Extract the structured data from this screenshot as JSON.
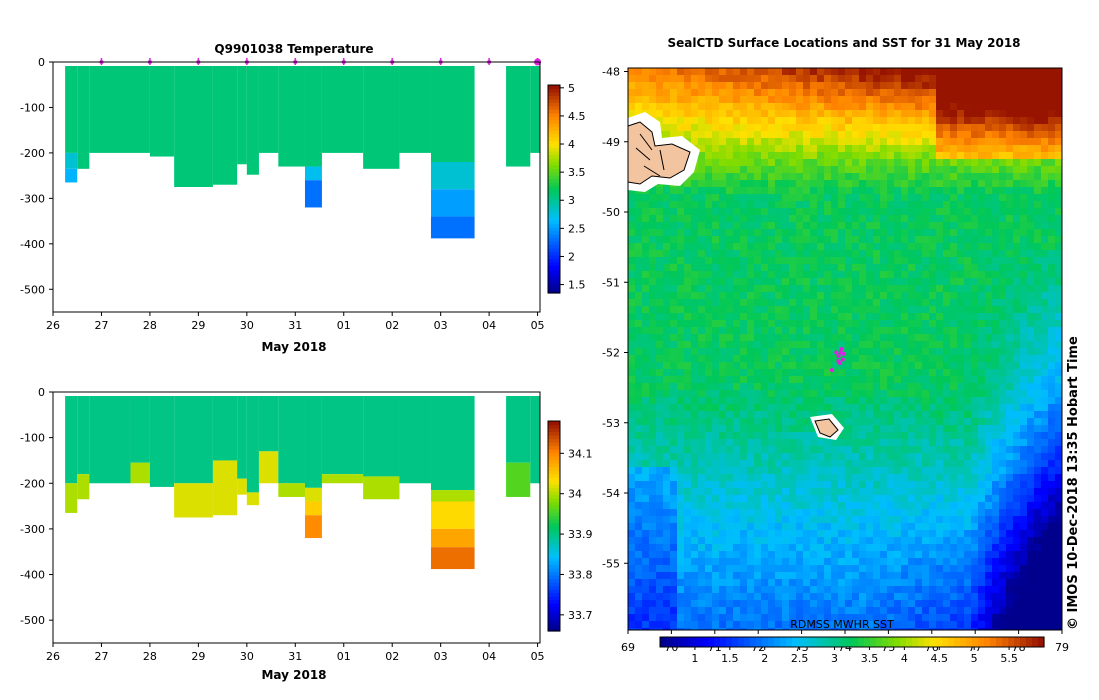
{
  "chart_data": [
    {
      "type": "heatmap",
      "title": "Q9901038  Temperature",
      "xlabel": "May 2018",
      "ylabel": "",
      "x_tick_labels": [
        "26",
        "27",
        "28",
        "29",
        "30",
        "31",
        "01",
        "02",
        "03",
        "04",
        "05"
      ],
      "x_range_days": [
        26.0,
        36.05
      ],
      "y_ticks": [
        0,
        -100,
        -200,
        -300,
        -400,
        -500
      ],
      "ylim": [
        -550,
        0
      ],
      "colorbar_ticks": [
        1.5,
        2,
        2.5,
        3,
        3.5,
        4,
        4.5,
        5
      ],
      "colorbar_range": [
        1.35,
        5.05
      ],
      "profile_markers_day": [
        27,
        28,
        29,
        30,
        31,
        32,
        33,
        34,
        35,
        36
      ],
      "profiles": [
        {
          "start": 26.25,
          "end": 26.5,
          "depth": -265,
          "layers": [
            [
              0,
              -200,
              3.1
            ],
            [
              -200,
              -235,
              2.8
            ],
            [
              -235,
              -265,
              2.6
            ]
          ]
        },
        {
          "start": 26.5,
          "end": 26.75,
          "depth": -235,
          "layers": [
            [
              0,
              -235,
              3.1
            ]
          ]
        },
        {
          "start": 26.75,
          "end": 28.0,
          "depth": -200,
          "layers": [
            [
              0,
              -200,
              3.1
            ]
          ]
        },
        {
          "start": 28.0,
          "end": 28.5,
          "depth": -208,
          "layers": [
            [
              0,
              -208,
              3.1
            ]
          ]
        },
        {
          "start": 28.5,
          "end": 29.3,
          "depth": -275,
          "layers": [
            [
              0,
              -275,
              3.1
            ]
          ]
        },
        {
          "start": 29.3,
          "end": 29.8,
          "depth": -270,
          "layers": [
            [
              0,
              -270,
              3.1
            ]
          ]
        },
        {
          "start": 29.8,
          "end": 30.0,
          "depth": -225,
          "layers": [
            [
              0,
              -225,
              3.1
            ]
          ]
        },
        {
          "start": 30.0,
          "end": 30.25,
          "depth": -248,
          "layers": [
            [
              0,
              -248,
              3.1
            ]
          ]
        },
        {
          "start": 30.25,
          "end": 30.65,
          "depth": -200,
          "layers": [
            [
              0,
              -200,
              3.1
            ]
          ]
        },
        {
          "start": 30.65,
          "end": 31.2,
          "depth": -230,
          "layers": [
            [
              0,
              -230,
              3.1
            ]
          ]
        },
        {
          "start": 31.2,
          "end": 31.55,
          "depth": -320,
          "layers": [
            [
              0,
              -230,
              3.1
            ],
            [
              -230,
              -260,
              2.7
            ],
            [
              -260,
              -320,
              2.3
            ]
          ]
        },
        {
          "start": 31.55,
          "end": 32.4,
          "depth": -200,
          "layers": [
            [
              0,
              -200,
              3.1
            ]
          ]
        },
        {
          "start": 32.4,
          "end": 33.15,
          "depth": -235,
          "layers": [
            [
              0,
              -235,
              3.1
            ]
          ]
        },
        {
          "start": 33.15,
          "end": 33.8,
          "depth": -200,
          "layers": [
            [
              0,
              -200,
              3.1
            ]
          ]
        },
        {
          "start": 33.8,
          "end": 34.7,
          "depth": -388,
          "layers": [
            [
              0,
              -220,
              3.1
            ],
            [
              -220,
              -280,
              2.8
            ],
            [
              -280,
              -340,
              2.5
            ],
            [
              -340,
              -388,
              2.3
            ]
          ]
        },
        {
          "start": 35.35,
          "end": 35.85,
          "depth": -230,
          "layers": [
            [
              0,
              -230,
              3.1
            ]
          ]
        },
        {
          "start": 35.85,
          "end": 36.05,
          "depth": -200,
          "layers": [
            [
              0,
              -200,
              3.1
            ]
          ]
        }
      ]
    },
    {
      "type": "heatmap",
      "title": "",
      "xlabel": "May 2018",
      "ylabel": "",
      "x_tick_labels": [
        "26",
        "27",
        "28",
        "29",
        "30",
        "31",
        "01",
        "02",
        "03",
        "04",
        "05"
      ],
      "x_range_days": [
        26.0,
        36.05
      ],
      "y_ticks": [
        0,
        -100,
        -200,
        -300,
        -400,
        -500
      ],
      "ylim": [
        -550,
        0
      ],
      "colorbar_ticks": [
        33.7,
        33.8,
        33.9,
        34,
        34.1
      ],
      "colorbar_range": [
        33.66,
        34.18
      ],
      "profiles": [
        {
          "start": 26.25,
          "end": 26.5,
          "depth": -265,
          "layers": [
            [
              0,
              -200,
              33.9
            ],
            [
              -200,
              -265,
              34.0
            ]
          ]
        },
        {
          "start": 26.5,
          "end": 26.75,
          "depth": -235,
          "layers": [
            [
              0,
              -180,
              33.9
            ],
            [
              -180,
              -235,
              34.0
            ]
          ]
        },
        {
          "start": 26.75,
          "end": 27.6,
          "depth": -200,
          "layers": [
            [
              0,
              -200,
              33.9
            ]
          ]
        },
        {
          "start": 27.6,
          "end": 28.0,
          "depth": -200,
          "layers": [
            [
              0,
              -155,
              33.9
            ],
            [
              -155,
              -200,
              34.0
            ]
          ]
        },
        {
          "start": 28.0,
          "end": 28.5,
          "depth": -208,
          "layers": [
            [
              0,
              -208,
              33.9
            ]
          ]
        },
        {
          "start": 28.5,
          "end": 29.3,
          "depth": -275,
          "layers": [
            [
              0,
              -200,
              33.9
            ],
            [
              -200,
              -275,
              34.02
            ]
          ]
        },
        {
          "start": 29.3,
          "end": 29.8,
          "depth": -270,
          "layers": [
            [
              0,
              -150,
              33.9
            ],
            [
              -150,
              -270,
              34.02
            ]
          ]
        },
        {
          "start": 29.8,
          "end": 30.0,
          "depth": -225,
          "layers": [
            [
              0,
              -190,
              33.9
            ],
            [
              -190,
              -225,
              34.02
            ]
          ]
        },
        {
          "start": 30.0,
          "end": 30.25,
          "depth": -248,
          "layers": [
            [
              0,
              -220,
              33.9
            ],
            [
              -220,
              -248,
              34.02
            ]
          ]
        },
        {
          "start": 30.25,
          "end": 30.65,
          "depth": -200,
          "layers": [
            [
              0,
              -130,
              33.9
            ],
            [
              -130,
              -200,
              34.02
            ]
          ]
        },
        {
          "start": 30.65,
          "end": 31.2,
          "depth": -230,
          "layers": [
            [
              0,
              -200,
              33.9
            ],
            [
              -200,
              -230,
              34.0
            ]
          ]
        },
        {
          "start": 31.2,
          "end": 31.55,
          "depth": -320,
          "layers": [
            [
              0,
              -210,
              33.9
            ],
            [
              -210,
              -240,
              34.02
            ],
            [
              -240,
              -270,
              34.05
            ],
            [
              -270,
              -320,
              34.1
            ]
          ]
        },
        {
          "start": 31.55,
          "end": 32.4,
          "depth": -200,
          "layers": [
            [
              0,
              -180,
              33.9
            ],
            [
              -180,
              -200,
              34.0
            ]
          ]
        },
        {
          "start": 32.4,
          "end": 33.15,
          "depth": -235,
          "layers": [
            [
              0,
              -185,
              33.9
            ],
            [
              -185,
              -235,
              34.0
            ]
          ]
        },
        {
          "start": 33.15,
          "end": 33.8,
          "depth": -200,
          "layers": [
            [
              0,
              -200,
              33.9
            ]
          ]
        },
        {
          "start": 33.8,
          "end": 34.7,
          "depth": -388,
          "layers": [
            [
              0,
              -215,
              33.9
            ],
            [
              -215,
              -240,
              34.0
            ],
            [
              -240,
              -300,
              34.04
            ],
            [
              -300,
              -340,
              34.08
            ],
            [
              -340,
              -388,
              34.12
            ]
          ]
        },
        {
          "start": 35.35,
          "end": 35.85,
          "depth": -230,
          "layers": [
            [
              0,
              -155,
              33.9
            ],
            [
              -155,
              -230,
              33.96
            ]
          ]
        },
        {
          "start": 35.85,
          "end": 36.05,
          "depth": -200,
          "layers": [
            [
              0,
              -200,
              33.9
            ]
          ]
        }
      ]
    },
    {
      "type": "heatmap",
      "title": "SealCTD Surface Locations and SST for 31 May 2018",
      "xlabel": "",
      "ylabel": "",
      "x_tick_labels": [
        "69",
        "70",
        "71",
        "72",
        "73",
        "74",
        "75",
        "76",
        "77",
        "78",
        "79"
      ],
      "xlim": [
        69,
        79
      ],
      "y_tick_labels": [
        "-48",
        "-49",
        "-50",
        "-51",
        "-52",
        "-53",
        "-54",
        "-55"
      ],
      "ylim": [
        -55.95,
        -47.95
      ],
      "colorbar_ticks": [
        "1",
        "1.5",
        "2",
        "2.5",
        "3",
        "3.5",
        "4",
        "4.5",
        "5",
        "5.5"
      ],
      "colorbar_range": [
        0.5,
        6.0
      ],
      "source_label": "RDMSS MWHR SST",
      "seal_locations": [
        [
          73.85,
          -52.05
        ],
        [
          73.9,
          -52.0
        ],
        [
          73.95,
          -52.1
        ],
        [
          73.88,
          -52.15
        ],
        [
          73.8,
          -52.0
        ],
        [
          73.92,
          -51.95
        ],
        [
          73.97,
          -52.02
        ],
        [
          73.7,
          -52.25
        ],
        [
          73.85,
          -52.12
        ]
      ],
      "islands": [
        "Kerguelen (partial)",
        "Heard Island"
      ]
    }
  ],
  "copyright_note": "© IMOS 10-Dec-2018 13:35 Hobart Time"
}
